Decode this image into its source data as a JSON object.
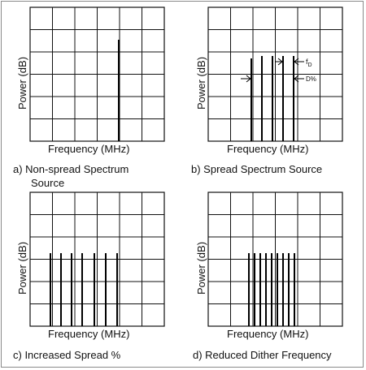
{
  "panels": [
    {
      "id": "a",
      "ylabel": "Power (dB)",
      "xlabel": "Frequency (MHz)",
      "caption_line1": "a) Non-spread Spectrum",
      "caption_line2": "Source",
      "lines": [
        146
      ]
    },
    {
      "id": "b",
      "ylabel": "Power (dB)",
      "xlabel": "Frequency (MHz)",
      "caption_line1": "b) Spread Spectrum Source",
      "caption_line2": "",
      "lines": [
        309,
        322,
        335,
        348,
        361
      ],
      "annotations": {
        "fd_label": "fD",
        "fd_main": "f",
        "fd_sub": "D",
        "d_label": "D%"
      }
    },
    {
      "id": "c",
      "ylabel": "Power (dB)",
      "xlabel": "Frequency (MHz)",
      "caption_line1": "c) Increased Spread %",
      "caption_line2": "",
      "lines": [
        62,
        75,
        88,
        101,
        116,
        130,
        144
      ]
    },
    {
      "id": "d",
      "ylabel": "Power (dB)",
      "xlabel": "Frequency (MHz)",
      "caption_line1": "d) Reduced Dither Frequency",
      "caption_line2": "",
      "lines": [
        306,
        313,
        320,
        327,
        334,
        341,
        348,
        355,
        362
      ]
    }
  ],
  "colors": {
    "grid": "#111111",
    "frame": "#8a8a8a",
    "text": "#111111"
  }
}
